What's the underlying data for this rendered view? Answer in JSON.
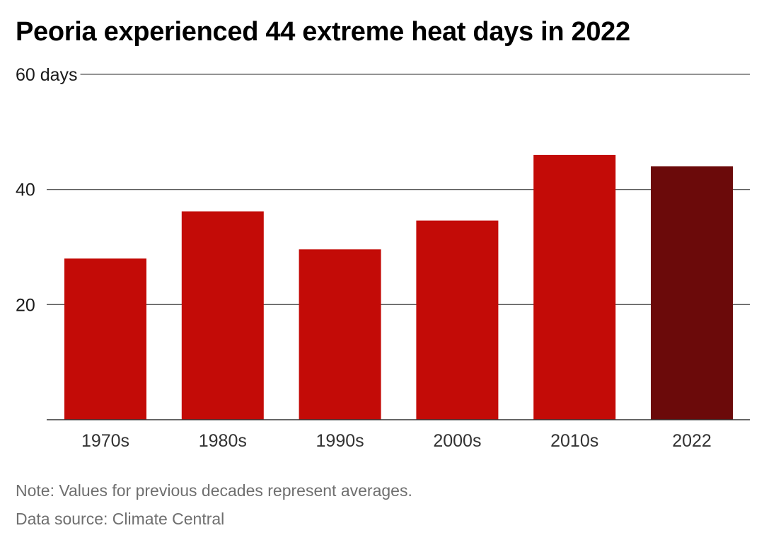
{
  "title": "Peoria experienced 44 extreme heat days in 2022",
  "note": "Note: Values for previous decades represent averages.",
  "source": "Data source: Climate Central",
  "chart_data": {
    "type": "bar",
    "categories": [
      "1970s",
      "1980s",
      "1990s",
      "2000s",
      "2010s",
      "2022"
    ],
    "values": [
      28,
      36.2,
      29.6,
      34.6,
      46,
      44
    ],
    "ylim": [
      0,
      60
    ],
    "yticks": [
      {
        "value": 60,
        "label": "60 days"
      },
      {
        "value": 40,
        "label": "40"
      },
      {
        "value": 20,
        "label": "20"
      }
    ],
    "grid": true,
    "colors": {
      "bar": "#c30b07",
      "highlight": "#6b0a0a",
      "highlight_category": "2022"
    }
  }
}
